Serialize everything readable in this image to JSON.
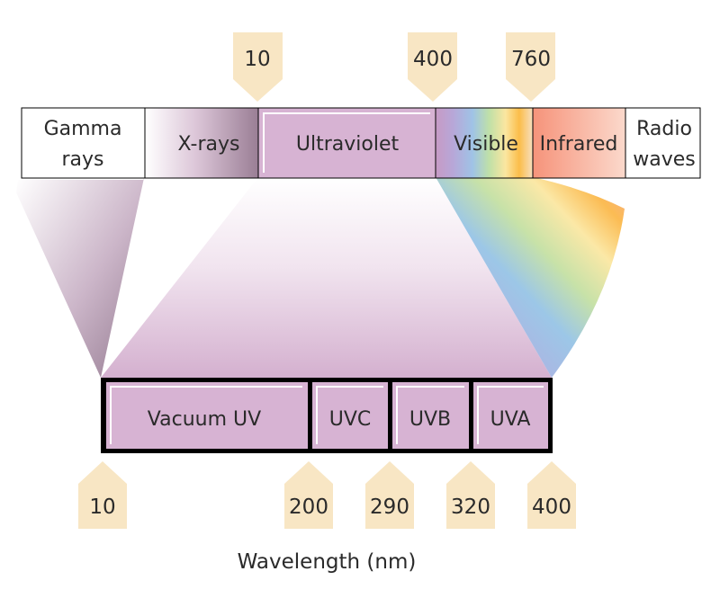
{
  "spectrum": {
    "bands": [
      {
        "line1": "Gamma",
        "line2": "rays"
      },
      {
        "line1": "X-rays",
        "line2": ""
      },
      {
        "line1": "Ultraviolet",
        "line2": ""
      },
      {
        "line1": "Visible",
        "line2": ""
      },
      {
        "line1": "Infrared",
        "line2": ""
      },
      {
        "line1": "Radio",
        "line2": "waves"
      }
    ],
    "boundary_markers": [
      "10",
      "400",
      "760"
    ]
  },
  "uv_detail": {
    "subbands": [
      "Vacuum UV",
      "UVC",
      "UVB",
      "UVA"
    ],
    "boundary_markers": [
      "10",
      "200",
      "290",
      "320",
      "400"
    ]
  },
  "axis_label": "Wavelength (nm)",
  "colors": {
    "uv_fill": "#d7b3d3",
    "marker_fill": "#f8e6c4",
    "infrared_fill": "#f7a68f",
    "frame_stroke": "#000000"
  }
}
